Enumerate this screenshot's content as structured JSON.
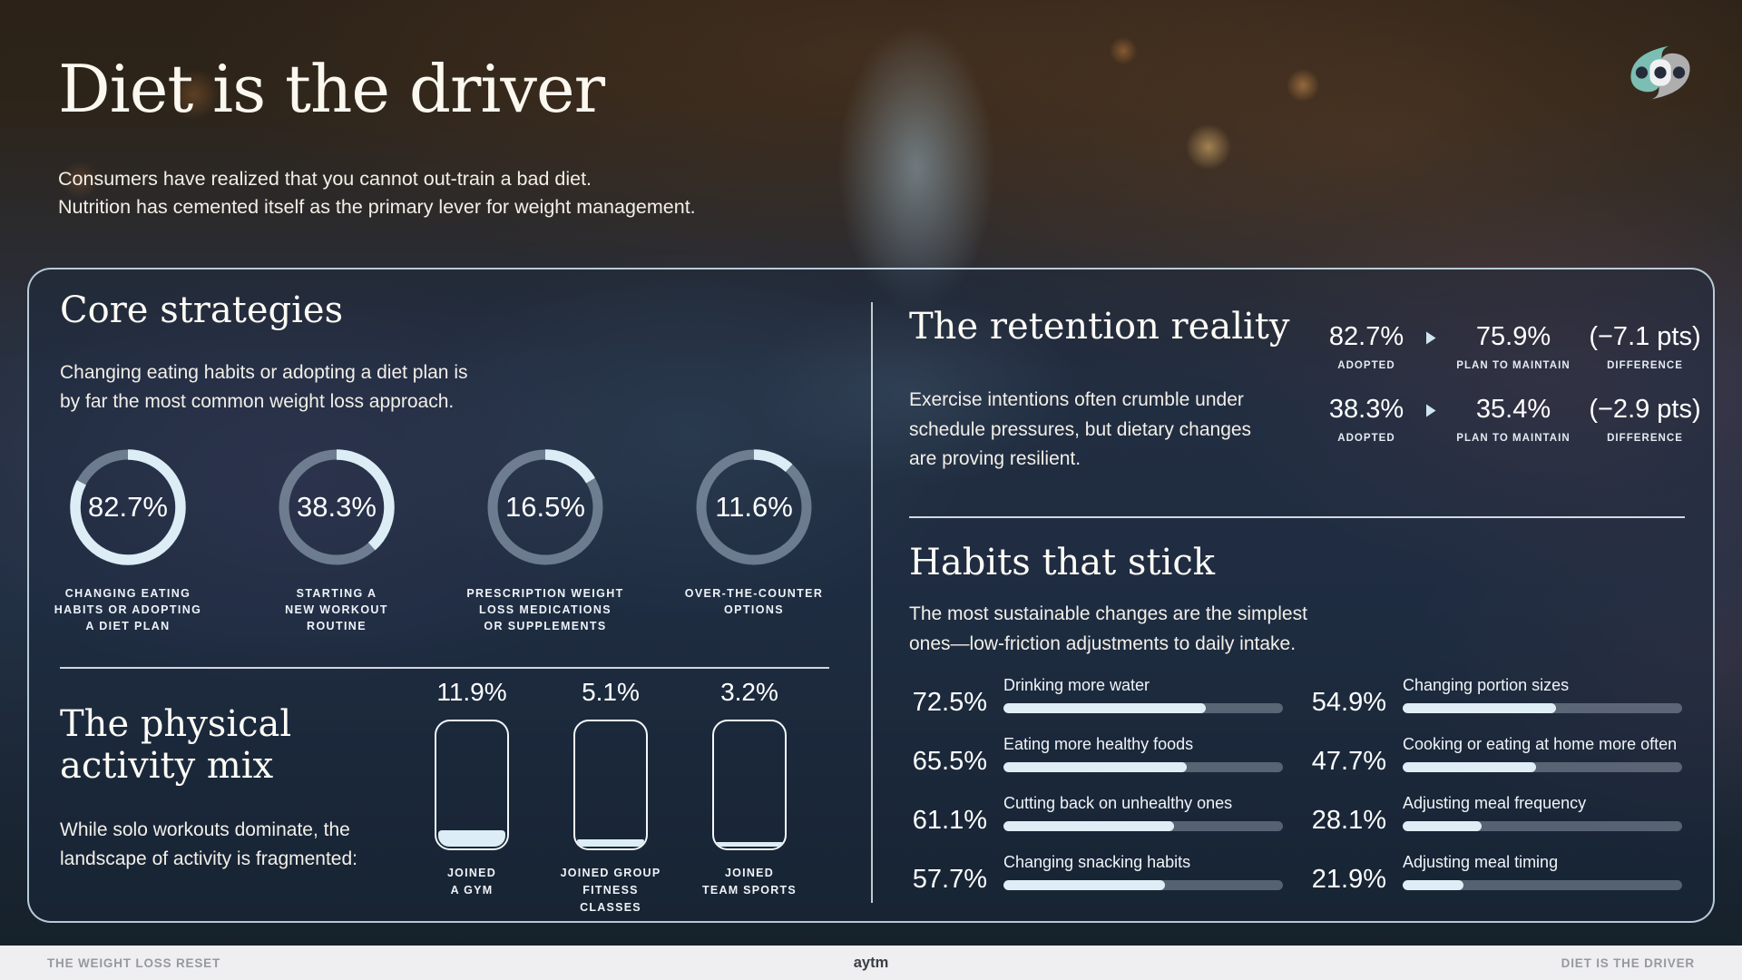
{
  "colors": {
    "accent_fill": "#dcedf6",
    "bar_track": "#6f8094",
    "panel_border": "#d3e8f4",
    "logo_teal": "#7fc6bc",
    "logo_gray": "#b9babc",
    "footer_bg": "#efeff1"
  },
  "header": {
    "title": "Diet is the driver",
    "subtitle_lines": [
      "Consumers have realized that you cannot out-train a bad diet.",
      "Nutrition has cemented itself as the primary lever for weight management."
    ]
  },
  "core": {
    "title": "Core strategies",
    "desc_lines": [
      "Changing eating habits or adopting a diet plan is",
      "by far the most common weight loss approach."
    ],
    "items": [
      {
        "value": 82.7,
        "display": "82.7%",
        "label_lines": [
          "CHANGING EATING",
          "HABITS OR ADOPTING",
          "A DIET PLAN"
        ]
      },
      {
        "value": 38.3,
        "display": "38.3%",
        "label_lines": [
          "STARTING A",
          "NEW WORKOUT",
          "ROUTINE"
        ]
      },
      {
        "value": 16.5,
        "display": "16.5%",
        "label_lines": [
          "PRESCRIPTION WEIGHT",
          "LOSS MEDICATIONS",
          "OR SUPPLEMENTS"
        ]
      },
      {
        "value": 11.6,
        "display": "11.6%",
        "label_lines": [
          "OVER-THE-COUNTER",
          "OPTIONS"
        ]
      }
    ]
  },
  "retention": {
    "title": "The retention reality",
    "desc_lines": [
      "Exercise intentions often crumble under",
      "schedule pressures, but dietary changes",
      "are proving resilient."
    ],
    "rows": [
      {
        "adopted": "82.7%",
        "adopted_label": "ADOPTED",
        "maintain": "75.9%",
        "maintain_label": "PLAN TO MAINTAIN",
        "diff": "(−7.1 pts)",
        "diff_label": "DIFFERENCE"
      },
      {
        "adopted": "38.3%",
        "adopted_label": "ADOPTED",
        "maintain": "35.4%",
        "maintain_label": "PLAN TO MAINTAIN",
        "diff": "(−2.9 pts)",
        "diff_label": "DIFFERENCE"
      }
    ]
  },
  "habits": {
    "title": "Habits that stick",
    "desc_lines": [
      "The most sustainable changes are the simplest",
      "ones—low-friction adjustments to daily intake."
    ],
    "left": [
      {
        "value": 72.5,
        "display": "72.5%",
        "label": "Drinking more water"
      },
      {
        "value": 65.5,
        "display": "65.5%",
        "label": "Eating more healthy foods"
      },
      {
        "value": 61.1,
        "display": "61.1%",
        "label": "Cutting back on unhealthy ones"
      },
      {
        "value": 57.7,
        "display": "57.7%",
        "label": "Changing snacking habits"
      }
    ],
    "right": [
      {
        "value": 54.9,
        "display": "54.9%",
        "label": "Changing portion sizes"
      },
      {
        "value": 47.7,
        "display": "47.7%",
        "label": "Cooking or eating at home more often"
      },
      {
        "value": 28.1,
        "display": "28.1%",
        "label": "Adjusting meal frequency"
      },
      {
        "value": 21.9,
        "display": "21.9%",
        "label": "Adjusting meal timing"
      }
    ]
  },
  "activity": {
    "title_lines": [
      "The physical",
      "activity mix"
    ],
    "desc_lines": [
      "While solo workouts dominate, the",
      "landscape of activity is fragmented:"
    ],
    "bars": [
      {
        "value": 11.9,
        "display": "11.9%",
        "label_lines": [
          "JOINED",
          "A GYM"
        ]
      },
      {
        "value": 5.1,
        "display": "5.1%",
        "label_lines": [
          "JOINED GROUP",
          "FITNESS CLASSES"
        ]
      },
      {
        "value": 3.2,
        "display": "3.2%",
        "label_lines": [
          "JOINED",
          "TEAM SPORTS"
        ]
      }
    ]
  },
  "footer": {
    "left": "THE WEIGHT LOSS RESET",
    "center": "aytm",
    "right": "DIET IS THE DRIVER"
  },
  "chart_data": [
    {
      "type": "pie",
      "variant": "donut-gauges",
      "title": "Core strategies",
      "categories": [
        "Changing eating habits or adopting a diet plan",
        "Starting a new workout routine",
        "Prescription weight loss medications or supplements",
        "Over-the-counter options"
      ],
      "values": [
        82.7,
        38.3,
        16.5,
        11.6
      ],
      "unit": "%"
    },
    {
      "type": "table",
      "title": "The retention reality",
      "columns": [
        "Adopted",
        "Plan to maintain",
        "Difference (pts)"
      ],
      "rows": [
        [
          82.7,
          75.9,
          -7.1
        ],
        [
          38.3,
          35.4,
          -2.9
        ]
      ],
      "unit": "%"
    },
    {
      "type": "bar",
      "orientation": "vertical",
      "title": "The physical activity mix",
      "categories": [
        "Joined a gym",
        "Joined group fitness classes",
        "Joined team sports"
      ],
      "values": [
        11.9,
        5.1,
        3.2
      ],
      "unit": "%",
      "ylim": [
        0,
        100
      ]
    },
    {
      "type": "bar",
      "orientation": "horizontal",
      "title": "Habits that stick",
      "categories": [
        "Drinking more water",
        "Eating more healthy foods",
        "Cutting back on unhealthy ones",
        "Changing snacking habits",
        "Changing portion sizes",
        "Cooking or eating at home more often",
        "Adjusting meal frequency",
        "Adjusting meal timing"
      ],
      "values": [
        72.5,
        65.5,
        61.1,
        57.7,
        54.9,
        47.7,
        28.1,
        21.9
      ],
      "unit": "%",
      "xlim": [
        0,
        100
      ]
    }
  ]
}
